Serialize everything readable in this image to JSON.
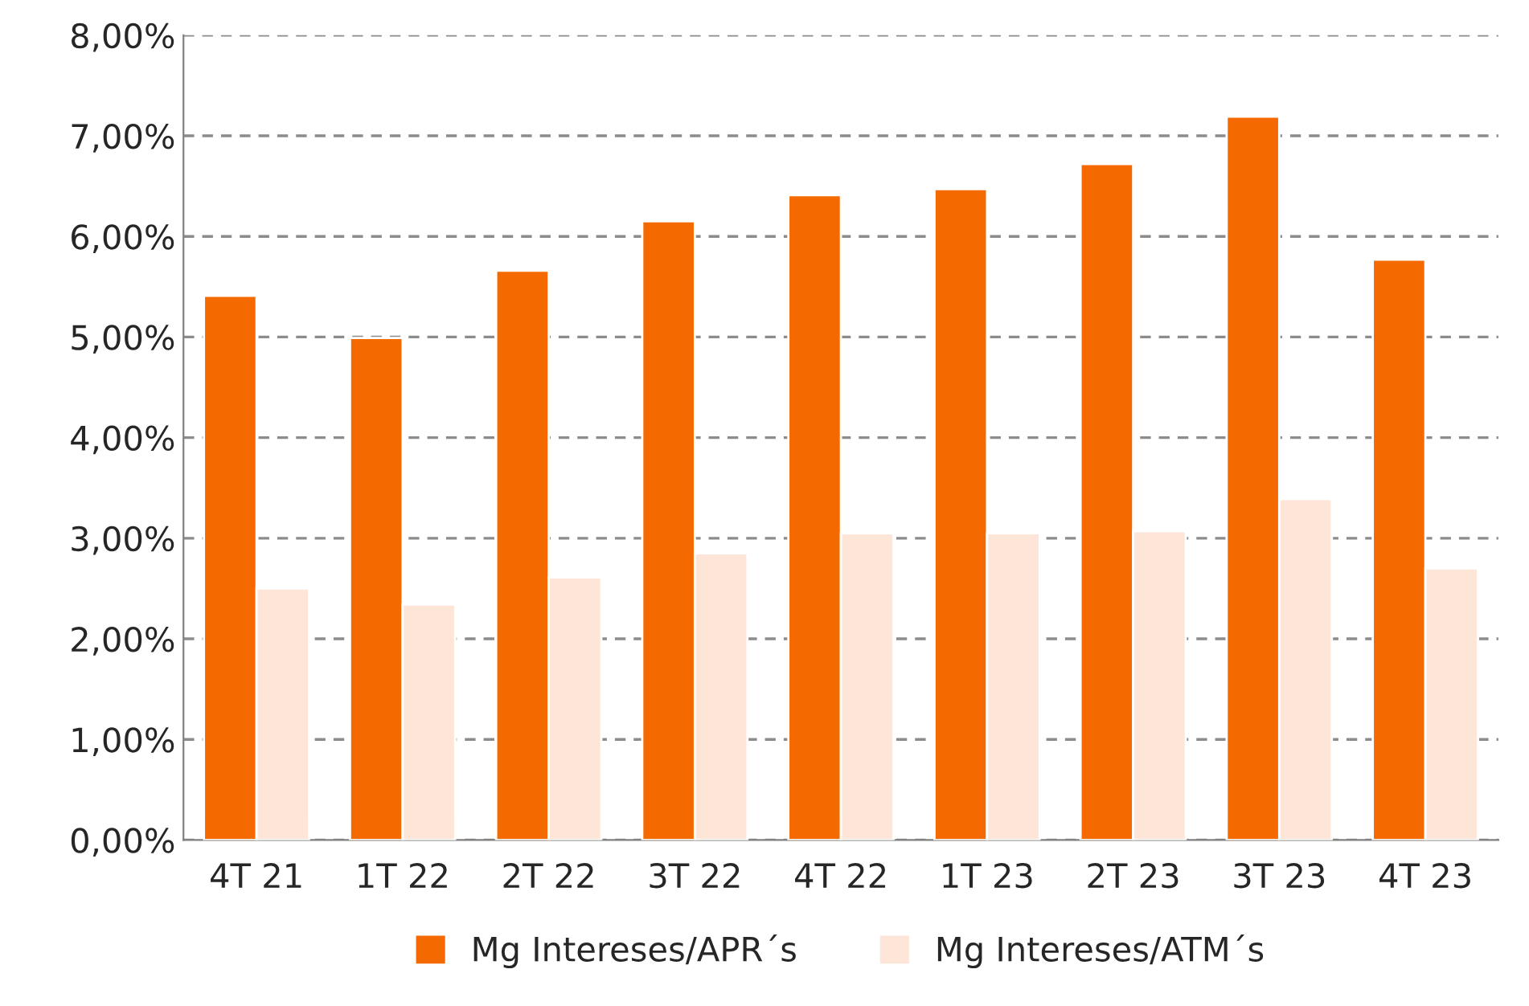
{
  "chart_data": {
    "type": "bar",
    "categories": [
      "4T 21",
      "1T 22",
      "2T 22",
      "3T 22",
      "4T 22",
      "1T 23",
      "2T 23",
      "3T 23",
      "4T 23"
    ],
    "series": [
      {
        "name": "Mg Intereses/APR´s",
        "color": "#f46a00",
        "values": [
          5.41,
          4.99,
          5.66,
          6.15,
          6.41,
          6.47,
          6.72,
          7.19,
          5.77
        ]
      },
      {
        "name": "Mg Intereses/ATM´s",
        "color": "#fde6d8",
        "values": [
          2.5,
          2.34,
          2.61,
          2.85,
          3.05,
          3.05,
          3.07,
          3.39,
          2.7
        ]
      }
    ],
    "ylim": [
      0,
      8
    ],
    "yticks": [
      {
        "value": 0,
        "label": "0,00%"
      },
      {
        "value": 1,
        "label": "1,00%"
      },
      {
        "value": 2,
        "label": "2,00%"
      },
      {
        "value": 3,
        "label": "3,00%"
      },
      {
        "value": 4,
        "label": "4,00%"
      },
      {
        "value": 5,
        "label": "5,00%"
      },
      {
        "value": 6,
        "label": "6,00%"
      },
      {
        "value": 7,
        "label": "7,00%"
      },
      {
        "value": 8,
        "label": "8,00%"
      }
    ],
    "grid": "y",
    "legend": "bottom"
  }
}
